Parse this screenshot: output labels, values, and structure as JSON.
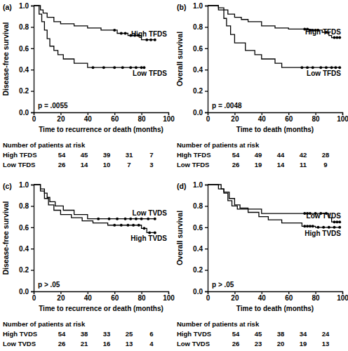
{
  "chart_data": [
    {
      "type": "step",
      "panel_label": "(a)",
      "x_label": "Time to recurrence or death (months)",
      "y_label": "Disease-free survival",
      "annotation": "p = .0055",
      "xlim": [
        0,
        100
      ],
      "xticks": [
        0,
        20,
        40,
        60,
        80,
        100
      ],
      "ylim": [
        0,
        1
      ],
      "yticks": [
        {
          "value": 0,
          "label": "0.0"
        },
        0.2,
        0.4,
        0.6,
        0.8,
        {
          "value": 1,
          "label": "1.0"
        }
      ],
      "grid": false,
      "series": [
        {
          "name": "High TFDS",
          "color": "#000000",
          "x": [
            0,
            5,
            7,
            10,
            15,
            20,
            30,
            40,
            50,
            62,
            70,
            80,
            90
          ],
          "values": [
            1,
            0.96,
            0.93,
            0.89,
            0.85,
            0.83,
            0.81,
            0.79,
            0.77,
            0.74,
            0.72,
            0.68,
            0.68
          ],
          "censored_x": [
            60,
            65,
            68,
            72,
            75,
            78,
            84,
            87,
            90
          ],
          "censored_values": [
            0.77,
            0.74,
            0.74,
            0.72,
            0.72,
            0.72,
            0.68,
            0.68,
            0.68
          ]
        },
        {
          "name": "Low TFDS",
          "color": "#000000",
          "x": [
            0,
            4,
            6,
            8,
            10,
            12,
            15,
            18,
            22,
            30,
            40,
            82
          ],
          "values": [
            1,
            0.92,
            0.85,
            0.77,
            0.69,
            0.62,
            0.58,
            0.54,
            0.5,
            0.46,
            0.42,
            0.42
          ],
          "censored_x": [
            44,
            52,
            60,
            66,
            72,
            76,
            80,
            82
          ],
          "censored_values": [
            0.42,
            0.42,
            0.42,
            0.42,
            0.42,
            0.42,
            0.42,
            0.42
          ]
        }
      ],
      "risk_table": {
        "title": "Number of patients at risk",
        "rows": [
          {
            "name": "High TFDS",
            "values": [
              54,
              45,
              39,
              31,
              7
            ]
          },
          {
            "name": "Low TFDS",
            "values": [
              26,
              14,
              10,
              7,
              3
            ]
          }
        ]
      }
    },
    {
      "type": "step",
      "panel_label": "(b)",
      "x_label": "Time to death (months)",
      "y_label": "Overall survival",
      "annotation": "p = .0048",
      "xlim": [
        0,
        100
      ],
      "xticks": [
        0,
        20,
        40,
        60,
        80,
        100
      ],
      "ylim": [
        0,
        1
      ],
      "yticks": [
        {
          "value": 0,
          "label": "0.0"
        },
        0.2,
        0.4,
        0.6,
        0.8,
        {
          "value": 1,
          "label": "1.0"
        }
      ],
      "grid": false,
      "series": [
        {
          "name": "High TFDS",
          "color": "#000000",
          "x": [
            0,
            8,
            12,
            15,
            20,
            25,
            30,
            40,
            50,
            60,
            75,
            85,
            90,
            92,
            98
          ],
          "values": [
            1,
            0.98,
            0.96,
            0.92,
            0.89,
            0.87,
            0.85,
            0.81,
            0.79,
            0.78,
            0.77,
            0.75,
            0.72,
            0.7,
            0.7
          ],
          "censored_x": [
            72,
            74,
            76,
            78,
            80,
            82,
            88,
            94,
            96,
            98
          ],
          "censored_values": [
            0.78,
            0.78,
            0.77,
            0.77,
            0.77,
            0.77,
            0.75,
            0.7,
            0.7,
            0.7
          ]
        },
        {
          "name": "Low TFDS",
          "color": "#000000",
          "x": [
            0,
            8,
            12,
            14,
            17,
            20,
            28,
            35,
            40,
            50,
            55,
            98
          ],
          "values": [
            1,
            0.96,
            0.88,
            0.81,
            0.73,
            0.65,
            0.58,
            0.54,
            0.5,
            0.46,
            0.42,
            0.42
          ],
          "censored_x": [
            70,
            74,
            78,
            84,
            88,
            92,
            95,
            98
          ],
          "censored_values": [
            0.42,
            0.42,
            0.42,
            0.42,
            0.42,
            0.42,
            0.42,
            0.42
          ]
        }
      ],
      "risk_table": {
        "title": "Number of patients at risk",
        "rows": [
          {
            "name": "HIgh TFDS",
            "values": [
              54,
              49,
              44,
              42,
              28
            ]
          },
          {
            "name": "Low TFDS",
            "values": [
              26,
              19,
              14,
              11,
              9
            ]
          }
        ]
      }
    },
    {
      "type": "step",
      "panel_label": "(c)",
      "x_label": "Time to recurrence or death (months)",
      "y_label": "Disease-free survival",
      "annotation": "p > .05",
      "xlim": [
        0,
        100
      ],
      "xticks": [
        0,
        20,
        40,
        60,
        80,
        100
      ],
      "ylim": [
        0,
        1
      ],
      "yticks": [
        {
          "value": 0,
          "label": "0.0"
        },
        0.2,
        0.4,
        0.6,
        0.8,
        {
          "value": 1,
          "label": "1.0"
        }
      ],
      "grid": false,
      "series": [
        {
          "name": "Low TVDS",
          "color": "#000000",
          "x": [
            0,
            5,
            8,
            10,
            12,
            16,
            22,
            30,
            40,
            90
          ],
          "values": [
            1,
            0.96,
            0.92,
            0.88,
            0.84,
            0.8,
            0.76,
            0.72,
            0.68,
            0.68
          ],
          "censored_x": [
            48,
            56,
            62,
            68,
            72,
            76,
            80,
            85,
            90
          ],
          "censored_values": [
            0.68,
            0.68,
            0.68,
            0.68,
            0.68,
            0.68,
            0.68,
            0.68,
            0.68
          ]
        },
        {
          "name": "High TVDS",
          "color": "#000000",
          "x": [
            0,
            5,
            8,
            11,
            15,
            20,
            28,
            36,
            44,
            55,
            80,
            84,
            90
          ],
          "values": [
            1,
            0.94,
            0.87,
            0.81,
            0.76,
            0.72,
            0.69,
            0.66,
            0.64,
            0.62,
            0.59,
            0.55,
            0.55
          ],
          "censored_x": [
            60,
            65,
            70,
            74,
            78,
            82,
            86,
            90
          ],
          "censored_values": [
            0.62,
            0.62,
            0.62,
            0.62,
            0.62,
            0.59,
            0.55,
            0.55
          ]
        }
      ],
      "risk_table": {
        "title": "Number of patients at risk",
        "rows": [
          {
            "name": "High TVDS",
            "values": [
              54,
              38,
              33,
              25,
              6
            ]
          },
          {
            "name": "Low TVDS",
            "values": [
              26,
              21,
              16,
              13,
              4
            ]
          }
        ]
      }
    },
    {
      "type": "step",
      "panel_label": "(d)",
      "x_label": "Time to death (months)",
      "y_label": "Overall survival",
      "annotation": "p > .05",
      "xlim": [
        0,
        100
      ],
      "xticks": [
        0,
        20,
        40,
        60,
        80,
        100
      ],
      "ylim": [
        0,
        1
      ],
      "yticks": [
        {
          "value": 0,
          "label": "0.0"
        },
        0.2,
        0.4,
        0.6,
        0.8,
        {
          "value": 1,
          "label": "1.0"
        }
      ],
      "grid": false,
      "series": [
        {
          "name": "Low TVDS",
          "color": "#000000",
          "x": [
            0,
            10,
            12,
            15,
            18,
            22,
            40,
            90,
            92,
            98
          ],
          "values": [
            1,
            0.96,
            0.92,
            0.85,
            0.8,
            0.77,
            0.73,
            0.69,
            0.65,
            0.65
          ],
          "censored_x": [
            72,
            74,
            76,
            80,
            84,
            88,
            94,
            96,
            98
          ],
          "censored_values": [
            0.73,
            0.73,
            0.73,
            0.73,
            0.73,
            0.73,
            0.65,
            0.65,
            0.65
          ]
        },
        {
          "name": "High TVDS",
          "color": "#000000",
          "x": [
            0,
            8,
            12,
            16,
            20,
            24,
            30,
            38,
            45,
            55,
            70,
            80,
            98
          ],
          "values": [
            1,
            0.96,
            0.93,
            0.87,
            0.81,
            0.78,
            0.74,
            0.7,
            0.67,
            0.64,
            0.61,
            0.6,
            0.6
          ],
          "censored_x": [
            72,
            74,
            76,
            78,
            82,
            86,
            90,
            94,
            98
          ],
          "censored_values": [
            0.61,
            0.61,
            0.61,
            0.61,
            0.6,
            0.6,
            0.6,
            0.6,
            0.6
          ]
        }
      ],
      "risk_table": {
        "title": "Number of patients at risk",
        "rows": [
          {
            "name": "High TVDS",
            "values": [
              54,
              45,
              38,
              34,
              24
            ]
          },
          {
            "name": "Low TVDS",
            "values": [
              26,
              23,
              20,
              19,
              13
            ]
          }
        ]
      }
    }
  ]
}
